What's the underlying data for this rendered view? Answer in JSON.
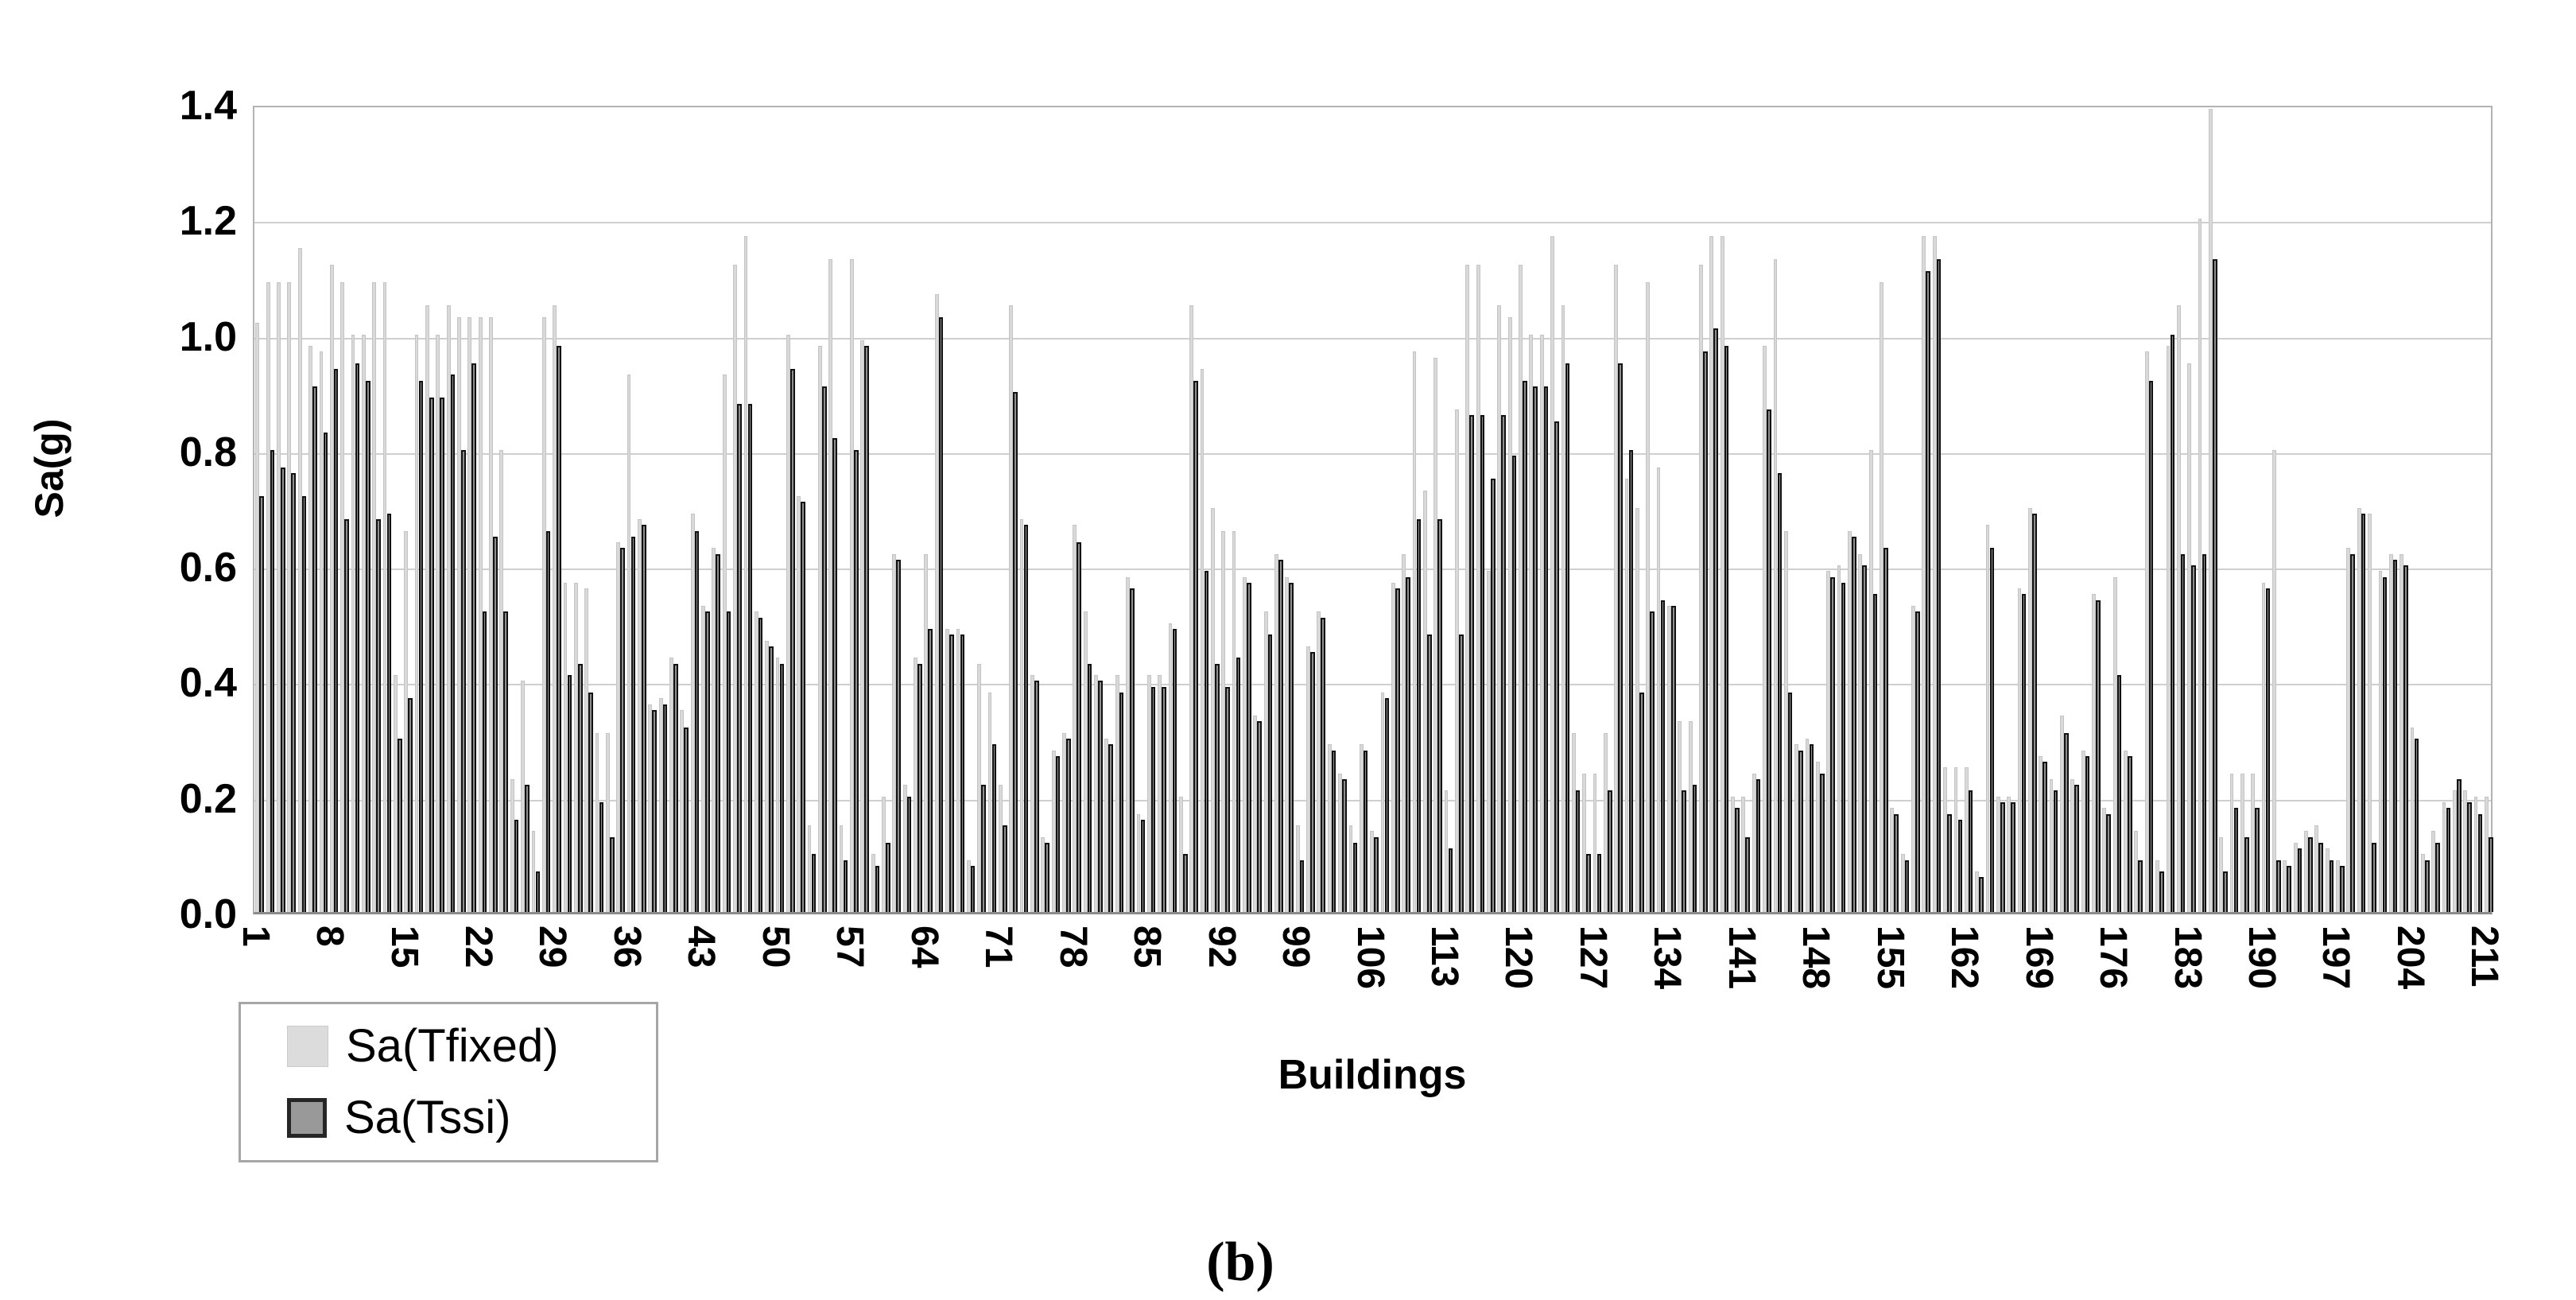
{
  "caption": "(b)",
  "chart_data": {
    "type": "bar",
    "title": "",
    "xlabel": "Buildings",
    "ylabel": "Sa(g)",
    "ylim": [
      0,
      1.4
    ],
    "ytick_step": 0.2,
    "ytick_labels": [
      "0.0",
      "0.2",
      "0.4",
      "0.6",
      "0.8",
      "1.0",
      "1.2",
      "1.4"
    ],
    "grid": true,
    "n_categories": 211,
    "xtick_start": 1,
    "xtick_step": 7,
    "xtick_labels": [
      "1",
      "8",
      "15",
      "22",
      "29",
      "36",
      "43",
      "50",
      "57",
      "64",
      "71",
      "78",
      "85",
      "92",
      "99",
      "106",
      "113",
      "120",
      "127",
      "134",
      "141",
      "148",
      "155",
      "162",
      "169",
      "176",
      "183",
      "190",
      "197",
      "204",
      "211"
    ],
    "legend": {
      "position": "bottom-left",
      "entries": [
        {
          "label": "Sa(Tfixed)",
          "fill": "#dcdcdc",
          "border": "#cccccc"
        },
        {
          "label": "Sa(Tssi)",
          "fill": "#999999",
          "border": "#262626"
        }
      ]
    },
    "series": [
      {
        "name": "Sa(Tfixed)",
        "values": [
          1.02,
          1.09,
          1.09,
          1.09,
          1.15,
          0.98,
          0.97,
          1.12,
          1.09,
          1.0,
          1.0,
          1.09,
          1.09,
          0.41,
          0.66,
          1.0,
          1.05,
          1.0,
          1.05,
          1.03,
          1.03,
          1.03,
          1.03,
          0.8,
          0.23,
          0.4,
          0.14,
          1.03,
          1.05,
          0.57,
          0.57,
          0.56,
          0.31,
          0.31,
          0.64,
          0.93,
          0.68,
          0.36,
          0.37,
          0.44,
          0.35,
          0.69,
          0.53,
          0.63,
          0.93,
          1.12,
          1.17,
          0.52,
          0.47,
          0.44,
          1.0,
          0.72,
          0.15,
          0.98,
          1.13,
          0.15,
          1.13,
          0.99,
          0.1,
          0.2,
          0.62,
          0.22,
          0.44,
          0.62,
          1.07,
          0.49,
          0.49,
          0.09,
          0.43,
          0.38,
          0.22,
          1.05,
          0.68,
          0.41,
          0.13,
          0.28,
          0.31,
          0.67,
          0.52,
          0.41,
          0.3,
          0.41,
          0.58,
          0.17,
          0.41,
          0.41,
          0.5,
          0.2,
          1.05,
          0.94,
          0.7,
          0.66,
          0.66,
          0.58,
          0.34,
          0.52,
          0.62,
          0.58,
          0.15,
          0.46,
          0.52,
          0.29,
          0.24,
          0.15,
          0.29,
          0.14,
          0.38,
          0.57,
          0.62,
          0.97,
          0.73,
          0.96,
          0.21,
          0.87,
          1.12,
          1.12,
          0.59,
          1.05,
          1.03,
          1.12,
          1.0,
          1.0,
          1.17,
          1.05,
          0.31,
          0.24,
          0.24,
          0.31,
          1.12,
          0.75,
          0.7,
          1.09,
          0.77,
          0.53,
          0.33,
          0.33,
          1.12,
          1.17,
          1.17,
          0.2,
          0.2,
          0.24,
          0.98,
          1.13,
          0.66,
          0.29,
          0.3,
          0.26,
          0.59,
          0.6,
          0.66,
          0.62,
          0.8,
          1.09,
          0.18,
          0.1,
          0.53,
          1.17,
          1.17,
          0.25,
          0.25,
          0.25,
          0.07,
          0.67,
          0.2,
          0.2,
          0.56,
          0.7,
          0.27,
          0.23,
          0.34,
          0.23,
          0.28,
          0.55,
          0.18,
          0.58,
          0.28,
          0.14,
          0.97,
          0.09,
          0.98,
          1.05,
          0.95,
          1.2,
          1.39,
          0.13,
          0.24,
          0.24,
          0.24,
          0.57,
          0.8,
          0.09,
          0.12,
          0.14,
          0.15,
          0.11,
          0.09,
          0.63,
          0.7,
          0.69,
          0.59,
          0.62,
          0.62,
          0.32,
          0.1,
          0.14,
          0.19,
          0.21,
          0.21,
          0.2,
          0.2
        ]
      },
      {
        "name": "Sa(Tssi)",
        "values": [
          0.72,
          0.8,
          0.77,
          0.76,
          0.72,
          0.91,
          0.83,
          0.94,
          0.68,
          0.95,
          0.92,
          0.68,
          0.69,
          0.3,
          0.37,
          0.92,
          0.89,
          0.89,
          0.93,
          0.8,
          0.95,
          0.52,
          0.65,
          0.52,
          0.16,
          0.22,
          0.07,
          0.66,
          0.98,
          0.41,
          0.43,
          0.38,
          0.19,
          0.13,
          0.63,
          0.65,
          0.67,
          0.35,
          0.36,
          0.43,
          0.32,
          0.66,
          0.52,
          0.62,
          0.52,
          0.88,
          0.88,
          0.51,
          0.46,
          0.43,
          0.94,
          0.71,
          0.1,
          0.91,
          0.82,
          0.09,
          0.8,
          0.98,
          0.08,
          0.12,
          0.61,
          0.2,
          0.43,
          0.49,
          1.03,
          0.48,
          0.48,
          0.08,
          0.22,
          0.29,
          0.15,
          0.9,
          0.67,
          0.4,
          0.12,
          0.27,
          0.3,
          0.64,
          0.43,
          0.4,
          0.29,
          0.38,
          0.56,
          0.16,
          0.39,
          0.39,
          0.49,
          0.1,
          0.92,
          0.59,
          0.43,
          0.39,
          0.44,
          0.57,
          0.33,
          0.48,
          0.61,
          0.57,
          0.09,
          0.45,
          0.51,
          0.28,
          0.23,
          0.12,
          0.28,
          0.13,
          0.37,
          0.56,
          0.58,
          0.68,
          0.48,
          0.68,
          0.11,
          0.48,
          0.86,
          0.86,
          0.75,
          0.86,
          0.79,
          0.92,
          0.91,
          0.91,
          0.85,
          0.95,
          0.21,
          0.1,
          0.1,
          0.21,
          0.95,
          0.8,
          0.38,
          0.52,
          0.54,
          0.53,
          0.21,
          0.22,
          0.97,
          1.01,
          0.98,
          0.18,
          0.13,
          0.23,
          0.87,
          0.76,
          0.38,
          0.28,
          0.29,
          0.24,
          0.58,
          0.57,
          0.65,
          0.6,
          0.55,
          0.63,
          0.17,
          0.09,
          0.52,
          1.11,
          1.13,
          0.17,
          0.16,
          0.21,
          0.06,
          0.63,
          0.19,
          0.19,
          0.55,
          0.69,
          0.26,
          0.21,
          0.31,
          0.22,
          0.27,
          0.54,
          0.17,
          0.41,
          0.27,
          0.09,
          0.92,
          0.07,
          1.0,
          0.62,
          0.6,
          0.62,
          1.13,
          0.07,
          0.18,
          0.13,
          0.18,
          0.56,
          0.09,
          0.08,
          0.11,
          0.13,
          0.12,
          0.09,
          0.08,
          0.62,
          0.69,
          0.12,
          0.58,
          0.61,
          0.6,
          0.3,
          0.09,
          0.12,
          0.18,
          0.23,
          0.19,
          0.17,
          0.13
        ]
      }
    ]
  }
}
